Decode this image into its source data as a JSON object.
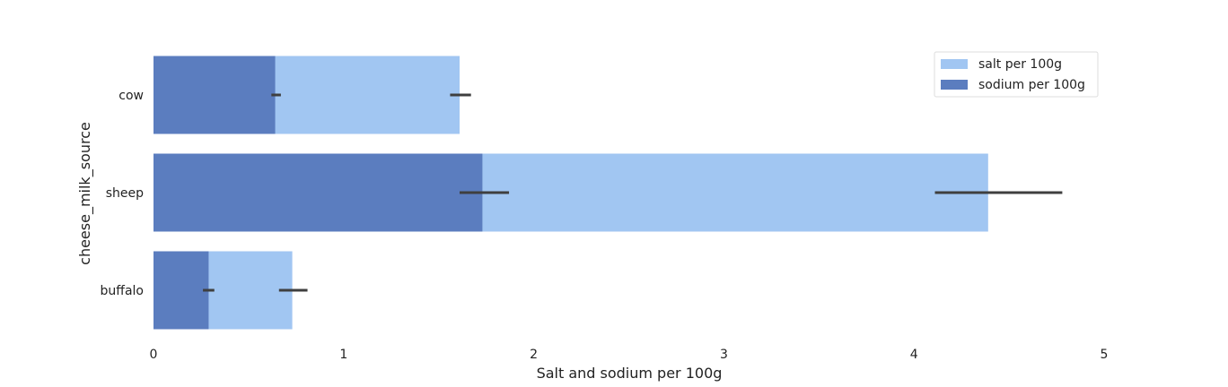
{
  "chart_data": {
    "type": "bar",
    "orientation": "horizontal",
    "categories": [
      "cow",
      "sheep",
      "buffalo"
    ],
    "series": [
      {
        "name": "salt per 100g",
        "color": "#a1c6f2",
        "values": [
          1.61,
          4.39,
          0.73
        ],
        "error": [
          [
            1.56,
            1.67
          ],
          [
            4.11,
            4.78
          ],
          [
            0.66,
            0.81
          ]
        ]
      },
      {
        "name": "sodium per 100g",
        "color": "#5b7dbf",
        "values": [
          0.64,
          1.73,
          0.29
        ],
        "error": [
          [
            0.62,
            0.67
          ],
          [
            1.61,
            1.87
          ],
          [
            0.26,
            0.32
          ]
        ]
      }
    ],
    "xlabel": "Salt and sodium per 100g",
    "ylabel": "cheese_milk_source",
    "xlim": [
      0,
      5
    ],
    "xticks": [
      "0",
      "1",
      "2",
      "3",
      "4",
      "5"
    ],
    "grid": false,
    "legend_position": "top-right",
    "error_bar_color": "#3f3f3f"
  }
}
